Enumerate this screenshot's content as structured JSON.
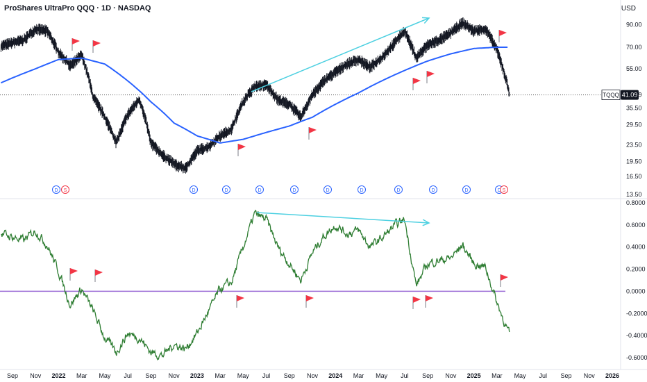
{
  "header": {
    "title": "ProShares UltraPro QQQ · 1D · NASDAQ",
    "currency": "USD"
  },
  "price_label": {
    "ticker": "TQQQ",
    "value": "41.09"
  },
  "colors": {
    "price": "#131722",
    "ma": "#2962ff",
    "osc": "#2e7d32",
    "zero": "#9c6dd6",
    "trend": "#4dd0e1",
    "flag": "#f23645",
    "dividend": "#2962ff",
    "split": "#f23645"
  },
  "chart_data": [
    {
      "type": "line",
      "title": "ProShares UltraPro QQQ · 1D · NASDAQ",
      "scale": "log",
      "ylim": [
        13.5,
        100
      ],
      "yticks": [
        "90.00",
        "70.00",
        "55.00",
        "41.09",
        "35.50",
        "29.50",
        "23.50",
        "19.50",
        "16.50",
        "13.50"
      ],
      "series": [
        {
          "name": "TQQQ",
          "x": [
            "2021-08",
            "2021-10",
            "2021-11",
            "2021-12",
            "2022-01",
            "2022-02",
            "2022-03",
            "2022-04",
            "2022-05",
            "2022-06",
            "2022-07",
            "2022-08",
            "2022-09",
            "2022-10",
            "2022-11",
            "2022-12",
            "2023-01",
            "2023-02",
            "2023-03",
            "2023-04",
            "2023-05",
            "2023-06",
            "2023-07",
            "2023-08",
            "2023-09",
            "2023-10",
            "2023-11",
            "2023-12",
            "2024-01",
            "2024-02",
            "2024-03",
            "2024-04",
            "2024-05",
            "2024-06",
            "2024-07",
            "2024-08",
            "2024-09",
            "2024-10",
            "2024-11",
            "2024-12",
            "2025-01",
            "2025-02",
            "2025-03",
            "2025-04-04"
          ],
          "values": [
            71,
            76,
            86,
            84,
            66,
            57,
            64,
            40,
            32,
            24,
            33,
            39,
            24,
            21,
            19,
            18,
            22,
            23,
            26,
            28,
            38,
            45,
            46,
            39,
            37,
            32,
            41,
            48,
            53,
            58,
            61,
            56,
            62,
            72,
            84,
            62,
            72,
            76,
            82,
            92,
            84,
            86,
            68,
            41.09
          ]
        },
        {
          "name": "MA",
          "x": [
            "2021-08",
            "2021-11",
            "2022-01",
            "2022-03",
            "2022-05",
            "2022-07",
            "2022-09",
            "2022-11",
            "2023-01",
            "2023-03",
            "2023-05",
            "2023-07",
            "2023-09",
            "2023-11",
            "2024-01",
            "2024-03",
            "2024-05",
            "2024-07",
            "2024-09",
            "2024-11",
            "2025-01",
            "2025-03",
            "2025-04"
          ],
          "values": [
            47,
            55,
            61,
            62,
            58,
            48,
            38,
            30,
            26,
            24,
            25,
            27,
            29,
            32,
            37,
            42,
            48,
            54,
            60,
            65,
            69,
            70,
            70
          ]
        }
      ],
      "dividend_markers": [
        "D",
        "D",
        "D",
        "D",
        "D",
        "D",
        "D",
        "D",
        "D",
        "D",
        "D",
        "D",
        "D"
      ],
      "split_markers": [
        "S",
        "S"
      ]
    },
    {
      "type": "line",
      "ylim": [
        -0.6,
        0.8
      ],
      "yticks": [
        "0.8000",
        "0.6000",
        "0.4000",
        "0.2000",
        "0.0000",
        "-0.2000",
        "-0.4000",
        "-0.6000"
      ],
      "series": [
        {
          "name": "",
          "x": [
            "2021-08",
            "2021-10",
            "2021-11",
            "2021-12",
            "2022-01",
            "2022-02",
            "2022-03",
            "2022-04",
            "2022-05",
            "2022-06",
            "2022-07",
            "2022-08",
            "2022-09",
            "2022-10",
            "2022-11",
            "2022-12",
            "2023-01",
            "2023-02",
            "2023-03",
            "2023-04",
            "2023-05",
            "2023-06",
            "2023-07",
            "2023-08",
            "2023-09",
            "2023-10",
            "2023-11",
            "2023-12",
            "2024-01",
            "2024-02",
            "2024-03",
            "2024-04",
            "2024-05",
            "2024-06",
            "2024-07",
            "2024-08",
            "2024-09",
            "2024-10",
            "2024-11",
            "2024-12",
            "2025-01",
            "2025-02",
            "2025-03",
            "2025-04-04"
          ],
          "values": [
            0.52,
            0.46,
            0.55,
            0.42,
            0.18,
            -0.12,
            0.02,
            -0.18,
            -0.42,
            -0.55,
            -0.38,
            -0.42,
            -0.55,
            -0.58,
            -0.48,
            -0.52,
            -0.38,
            -0.18,
            0.02,
            0.08,
            0.4,
            0.7,
            0.65,
            0.4,
            0.25,
            0.1,
            0.35,
            0.5,
            0.6,
            0.52,
            0.55,
            0.4,
            0.48,
            0.58,
            0.65,
            0.05,
            0.25,
            0.28,
            0.3,
            0.42,
            0.25,
            0.22,
            -0.1,
            -0.4
          ]
        }
      ]
    }
  ],
  "x_axis": {
    "labels": [
      {
        "t": "Sep",
        "x": "2021-09"
      },
      {
        "t": "Nov",
        "x": "2021-11"
      },
      {
        "t": "2022",
        "x": "2022-01"
      },
      {
        "t": "Mar",
        "x": "2022-03"
      },
      {
        "t": "May",
        "x": "2022-05"
      },
      {
        "t": "Jul",
        "x": "2022-07"
      },
      {
        "t": "Sep",
        "x": "2022-09"
      },
      {
        "t": "Nov",
        "x": "2022-11"
      },
      {
        "t": "2023",
        "x": "2023-01"
      },
      {
        "t": "Mar",
        "x": "2023-03"
      },
      {
        "t": "May",
        "x": "2023-05"
      },
      {
        "t": "Jul",
        "x": "2023-07"
      },
      {
        "t": "Sep",
        "x": "2023-09"
      },
      {
        "t": "Nov",
        "x": "2023-11"
      },
      {
        "t": "2024",
        "x": "2024-01"
      },
      {
        "t": "Mar",
        "x": "2024-03"
      },
      {
        "t": "May",
        "x": "2024-05"
      },
      {
        "t": "Jul",
        "x": "2024-07"
      },
      {
        "t": "Sep",
        "x": "2024-09"
      },
      {
        "t": "Nov",
        "x": "2024-11"
      },
      {
        "t": "2025",
        "x": "2025-01"
      },
      {
        "t": "Mar",
        "x": "2025-03"
      },
      {
        "t": "May",
        "x": "2025-05"
      },
      {
        "t": "Jul",
        "x": "2025-07"
      },
      {
        "t": "Sep",
        "x": "2025-09"
      },
      {
        "t": "Nov",
        "x": "2025-11"
      },
      {
        "t": "2026",
        "x": "2026-01"
      }
    ]
  }
}
